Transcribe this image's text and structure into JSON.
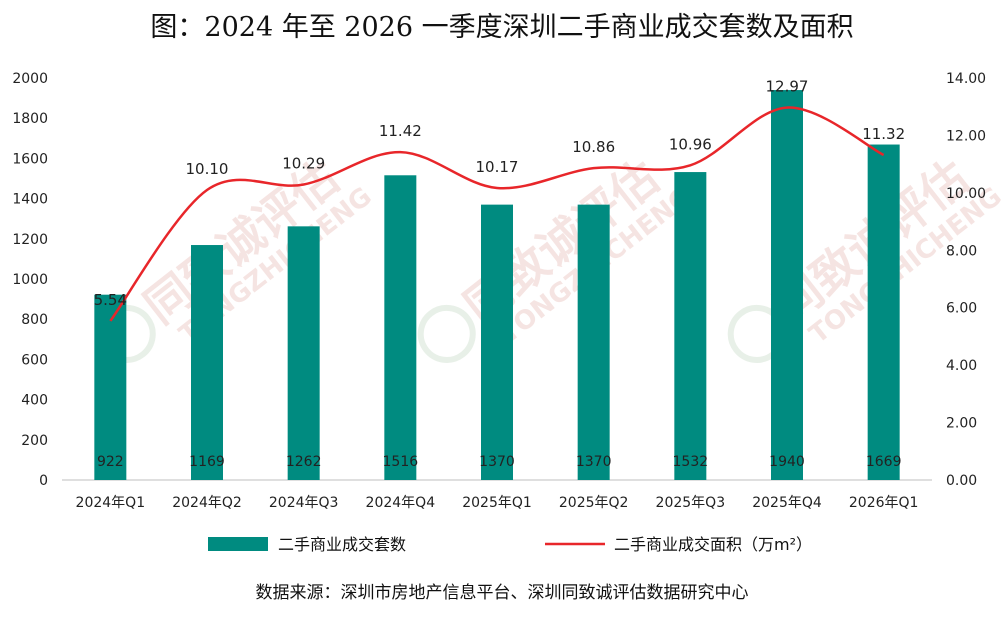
{
  "title": "图：2024 年至 2026 一季度深圳二手商业成交套数及面积",
  "source": "数据来源：深圳市房地产信息平台、深圳同致诚评估数据研究中心",
  "watermark": {
    "text_cn": "同致诚评估",
    "text_en": "TONGZHICHENG"
  },
  "chart_data": {
    "type": "bar+line",
    "title": "图：2024 年至 2026 一季度深圳二手商业成交套数及面积",
    "categories": [
      "2024年Q1",
      "2024年Q2",
      "2024年Q3",
      "2024年Q4",
      "2025年Q1",
      "2025年Q2",
      "2025年Q3",
      "2025年Q4",
      "2026年Q1"
    ],
    "y_left": {
      "min": 0,
      "max": 2000,
      "step": 200,
      "ticks": [
        "0",
        "200",
        "400",
        "600",
        "800",
        "1000",
        "1200",
        "1400",
        "1600",
        "1800",
        "2000"
      ]
    },
    "y_right": {
      "min": 0,
      "max": 14,
      "step": 2,
      "ticks": [
        "0.00",
        "2.00",
        "4.00",
        "6.00",
        "8.00",
        "10.00",
        "12.00",
        "14.00"
      ]
    },
    "series": [
      {
        "name": "二手商业成交套数",
        "type": "bar",
        "axis": "left",
        "color": "#008b80",
        "values": [
          922,
          1169,
          1262,
          1516,
          1370,
          1370,
          1532,
          1940,
          1669
        ],
        "labels": [
          "922",
          "1169",
          "1262",
          "1516",
          "1370",
          "1370",
          "1532",
          "1940",
          "1669"
        ]
      },
      {
        "name": "二手商业成交面积（万m²）",
        "type": "line",
        "axis": "right",
        "color": "#e8262a",
        "values": [
          5.54,
          10.1,
          10.29,
          11.42,
          10.17,
          10.86,
          10.96,
          12.97,
          11.32
        ],
        "labels": [
          "5.54",
          "10.10",
          "10.29",
          "11.42",
          "10.17",
          "10.86",
          "10.96",
          "12.97",
          "11.32"
        ]
      }
    ],
    "legend": {
      "position": "bottom"
    },
    "grid": false
  }
}
